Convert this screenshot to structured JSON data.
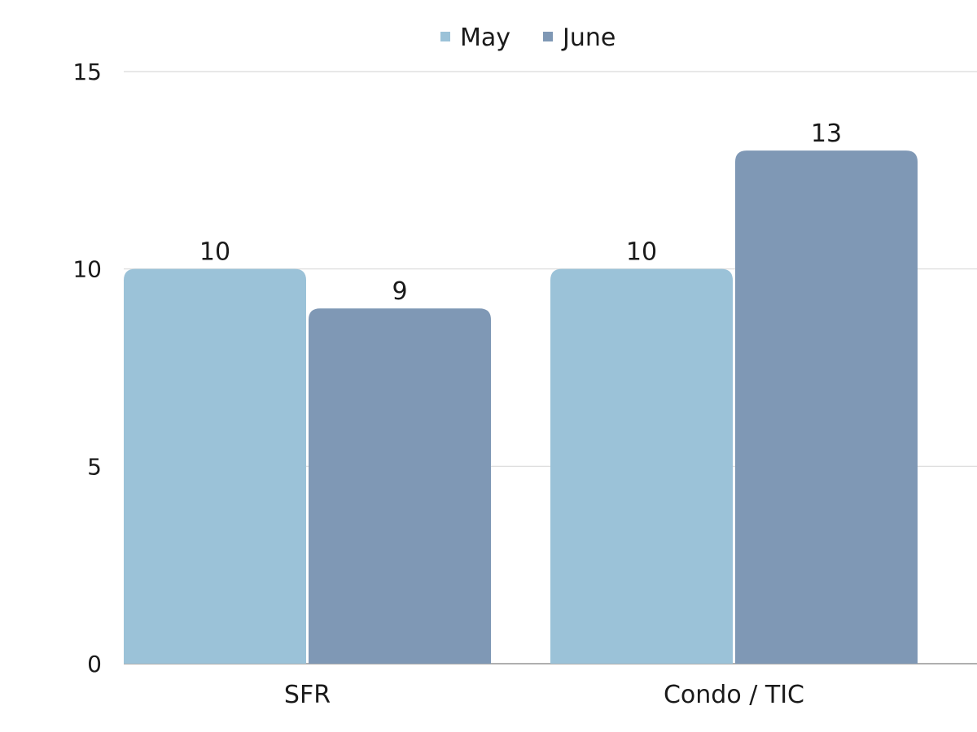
{
  "chart_data": {
    "type": "bar",
    "categories": [
      "SFR",
      "Condo / TIC"
    ],
    "series": [
      {
        "name": "May",
        "values": [
          10,
          10
        ],
        "color": "#9bc2d8"
      },
      {
        "name": "June",
        "values": [
          9,
          13
        ],
        "color": "#7f98b5"
      }
    ],
    "ylim": [
      0,
      15
    ],
    "yticks": [
      0,
      5,
      10,
      15
    ],
    "grid": true,
    "legend": "top-center",
    "data_labels": true
  }
}
